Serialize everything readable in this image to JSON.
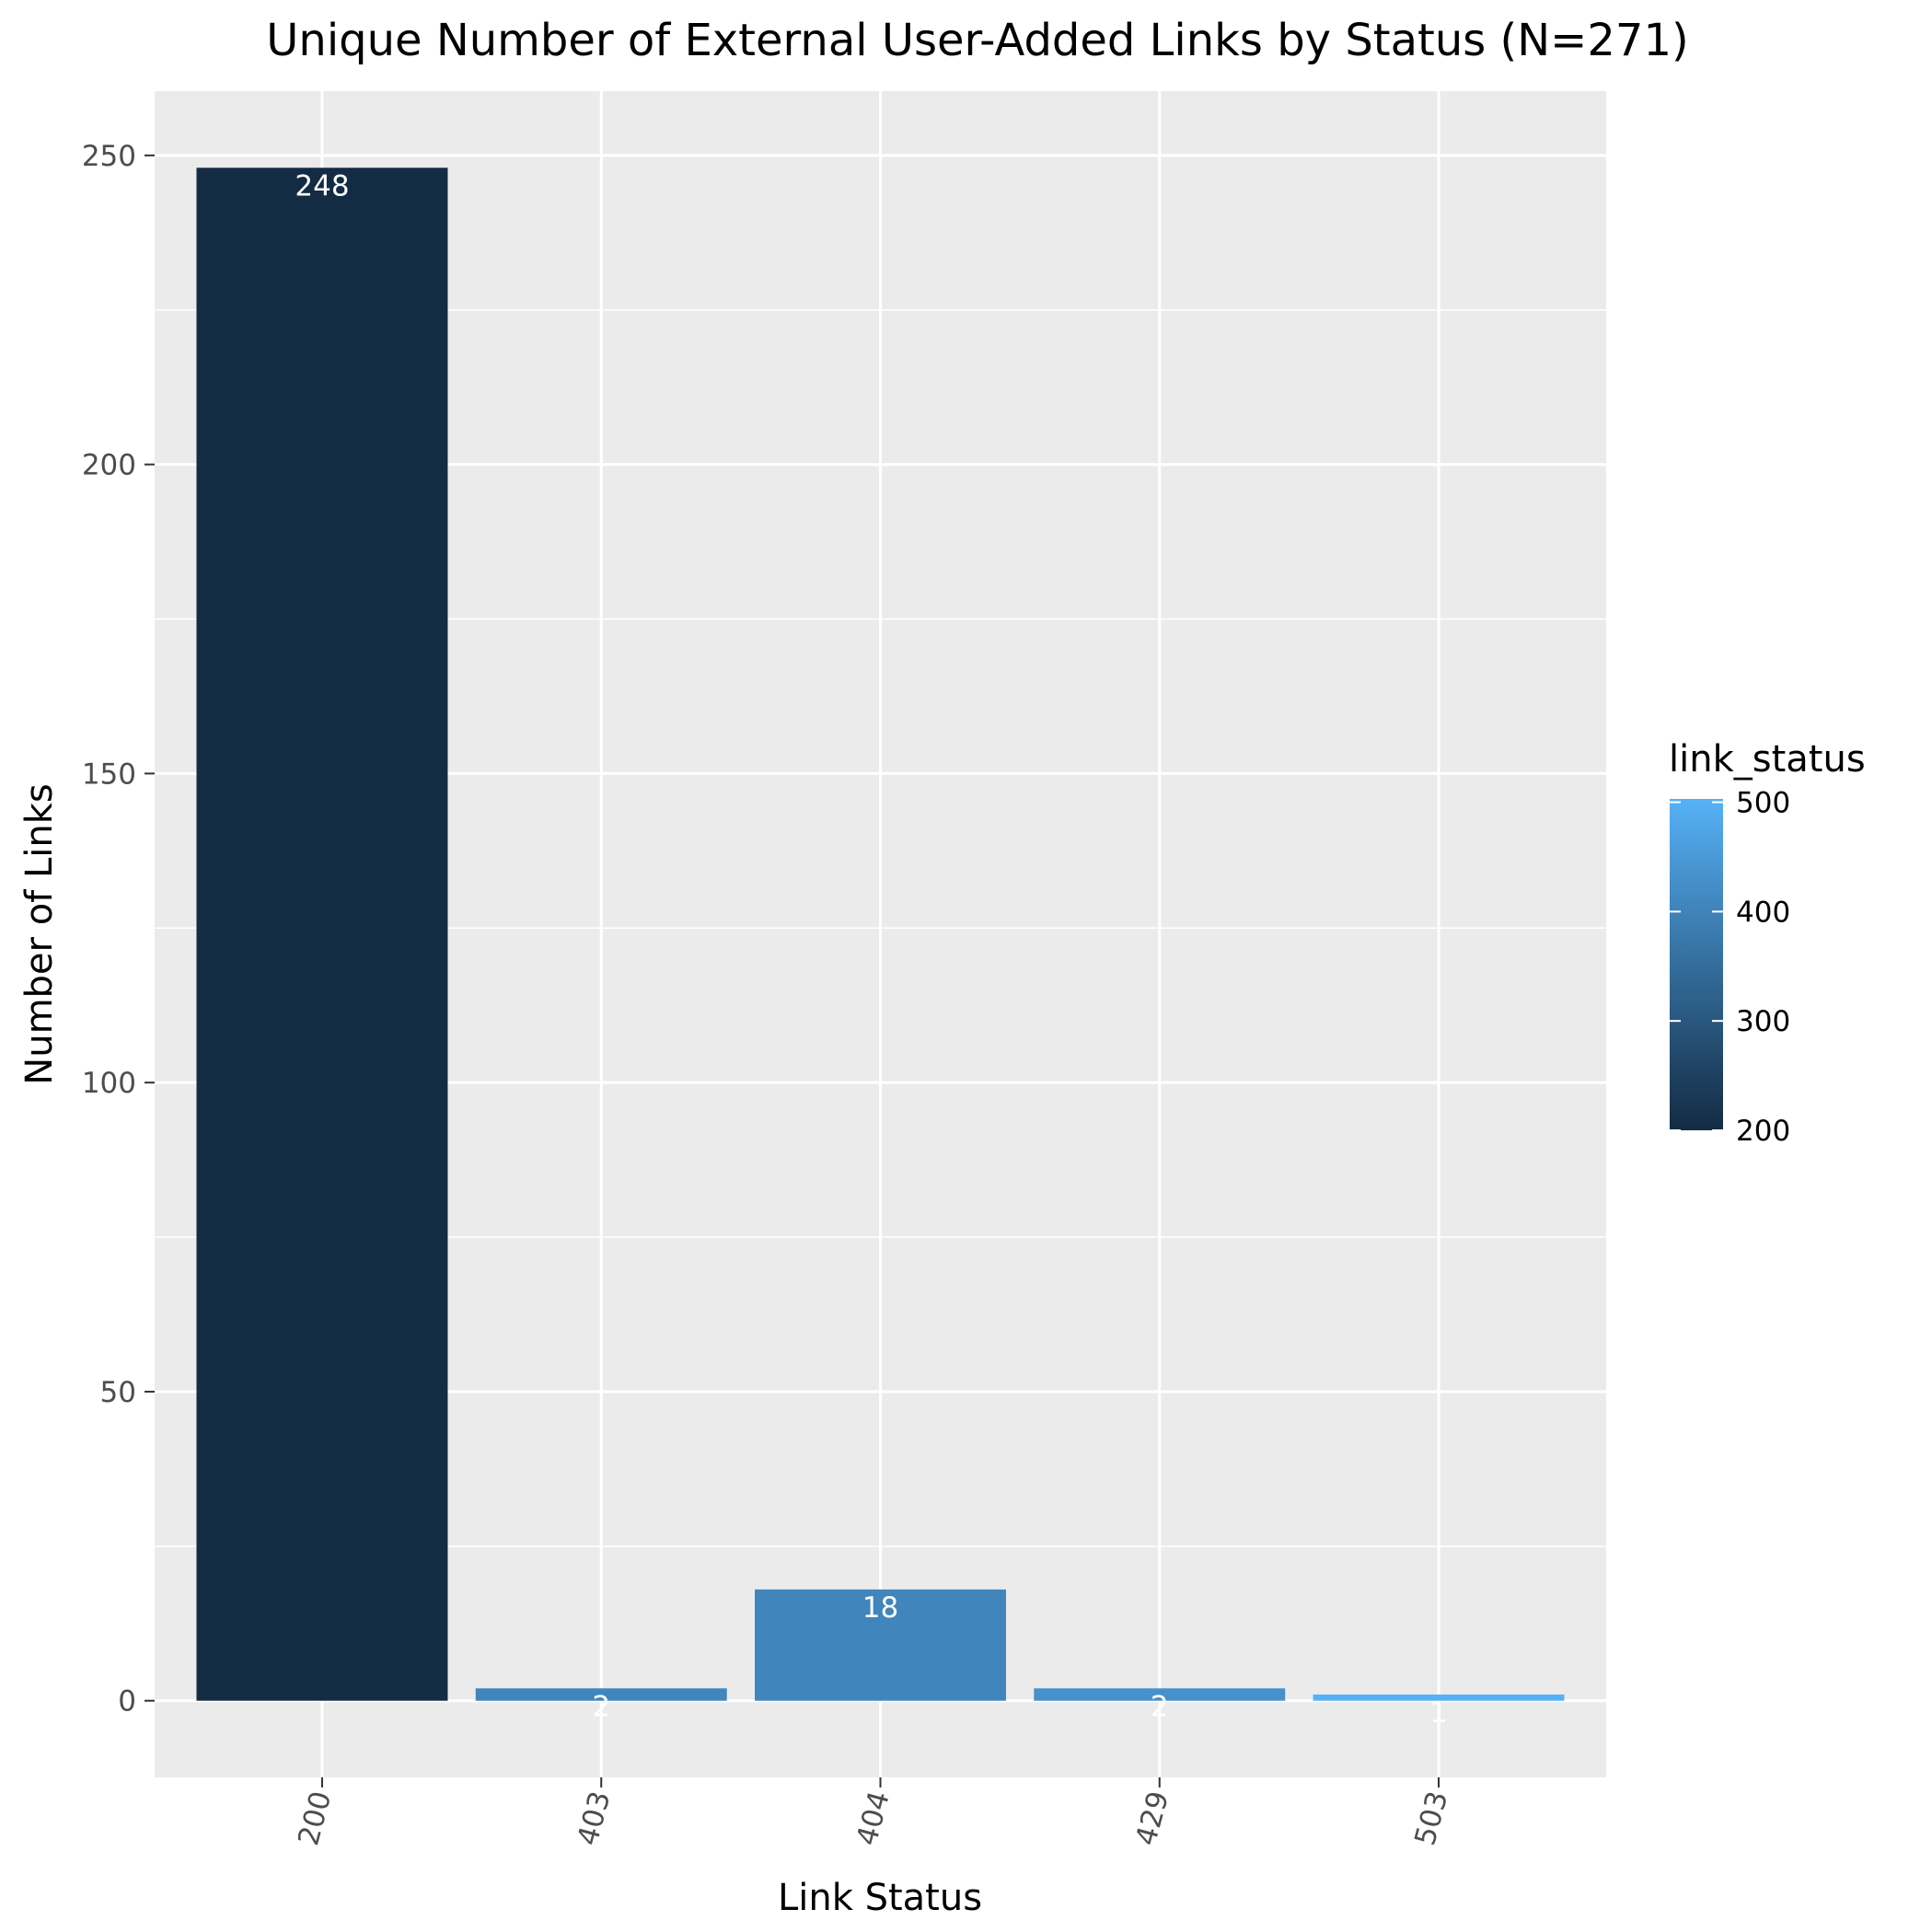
{
  "chart_data": {
    "type": "bar",
    "title": "Unique Number of External User-Added Links by Status (N=271)",
    "xlabel": "Link Status",
    "ylabel": "Number of Links",
    "categories": [
      "200",
      "403",
      "404",
      "429",
      "503"
    ],
    "values": [
      248,
      2,
      18,
      2,
      1
    ],
    "data_labels": [
      "248",
      "2",
      "18",
      "2",
      "1"
    ],
    "ylim": [
      -12.4,
      260.4
    ],
    "yticks": [
      0,
      50,
      100,
      150,
      200,
      250
    ],
    "ytick_labels": [
      "0",
      "50",
      "100",
      "150",
      "200",
      "250"
    ],
    "grid": true,
    "panel_background": "#ebebeb",
    "grid_color": "#ffffff",
    "x_tick_rotation": -75,
    "legend": {
      "title": "link_status",
      "position": "right",
      "type": "colorbar",
      "range": [
        200,
        503
      ],
      "ticks": [
        200,
        300,
        400,
        500
      ],
      "tick_labels": [
        "200",
        "300",
        "400",
        "500"
      ],
      "low_color": "#132B43",
      "high_color": "#56B1F7"
    }
  }
}
